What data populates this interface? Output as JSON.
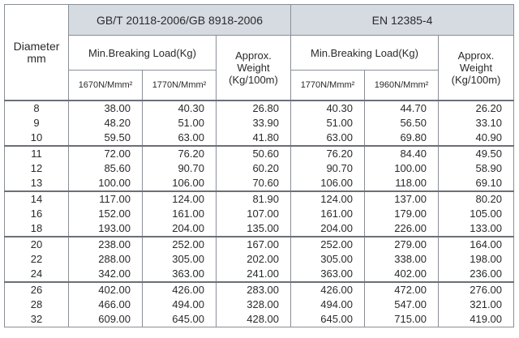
{
  "table": {
    "header": {
      "diameter": "Diameter\nmm",
      "groups": [
        {
          "title": "GB/T 20118-2006/GB 8918-2006",
          "load": "Min.Breaking Load(Kg)",
          "weight": "Approx.\nWeight\n(Kg/100m)",
          "grades": [
            "1670N/Mmm²",
            "1770N/Mmm²"
          ]
        },
        {
          "title": "EN 12385-4",
          "load": "Min.Breaking Load(Kg)",
          "weight": "Approx.\nWeight\n(Kg/100m)",
          "grades": [
            "1770N/Mmm²",
            "1960N/Mmm²"
          ]
        }
      ]
    },
    "rows": [
      [
        "8",
        "38.00",
        "40.30",
        "26.80",
        "40.30",
        "44.70",
        "26.20"
      ],
      [
        "9",
        "48.20",
        "51.00",
        "33.90",
        "51.00",
        "56.50",
        "33.10"
      ],
      [
        "10",
        "59.50",
        "63.00",
        "41.80",
        "63.00",
        "69.80",
        "40.90"
      ],
      [
        "11",
        "72.00",
        "76.20",
        "50.60",
        "76.20",
        "84.40",
        "49.50"
      ],
      [
        "12",
        "85.60",
        "90.70",
        "60.20",
        "90.70",
        "100.00",
        "58.90"
      ],
      [
        "13",
        "100.00",
        "106.00",
        "70.60",
        "106.00",
        "118.00",
        "69.10"
      ],
      [
        "14",
        "117.00",
        "124.00",
        "81.90",
        "124.00",
        "137.00",
        "80.20"
      ],
      [
        "16",
        "152.00",
        "161.00",
        "107.00",
        "161.00",
        "179.00",
        "105.00"
      ],
      [
        "18",
        "193.00",
        "204.00",
        "135.00",
        "204.00",
        "226.00",
        "133.00"
      ],
      [
        "20",
        "238.00",
        "252.00",
        "167.00",
        "252.00",
        "279.00",
        "164.00"
      ],
      [
        "22",
        "288.00",
        "305.00",
        "202.00",
        "305.00",
        "338.00",
        "198.00"
      ],
      [
        "24",
        "342.00",
        "363.00",
        "241.00",
        "363.00",
        "402.00",
        "236.00"
      ],
      [
        "26",
        "402.00",
        "426.00",
        "283.00",
        "426.00",
        "472.00",
        "276.00"
      ],
      [
        "28",
        "466.00",
        "494.00",
        "328.00",
        "494.00",
        "547.00",
        "321.00"
      ],
      [
        "32",
        "609.00",
        "645.00",
        "428.00",
        "645.00",
        "715.00",
        "419.00"
      ]
    ]
  }
}
